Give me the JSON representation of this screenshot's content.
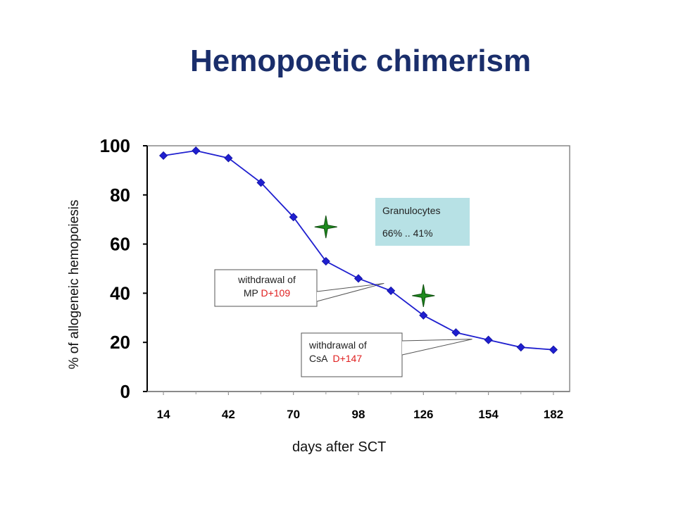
{
  "title": "Hemopoetic chimerism",
  "chart_data": {
    "type": "line",
    "x": [
      14,
      28,
      42,
      56,
      70,
      84,
      98,
      112,
      126,
      140,
      154,
      168,
      182
    ],
    "values": [
      96,
      98,
      95,
      85,
      71,
      53,
      46,
      41,
      31,
      24,
      21,
      18,
      17
    ],
    "xticks": [
      "14",
      "42",
      "70",
      "98",
      "126",
      "154",
      "182"
    ],
    "yticks": [
      "0",
      "20",
      "40",
      "60",
      "80",
      "100"
    ],
    "ylim": [
      0,
      100
    ],
    "xlim": [
      7,
      189
    ],
    "xlabel": "days after SCT",
    "ylabel": "% of allogeneic hemopoiesis",
    "series_color": "#1f1fcf",
    "marker": "diamond",
    "grid": false,
    "legend": {
      "line1": "Granulocytes",
      "line2": "66% .. 41%",
      "color": "#b7e1e5",
      "placement": "top-right"
    },
    "annotations": [
      {
        "line1": "withdrawal of",
        "line2_prefix": "MP ",
        "line2_highlight": "D+109",
        "points_to_day": 109
      },
      {
        "line1": "withdrawal of",
        "line2_prefix": "CsA  ",
        "line2_highlight": "D+147",
        "points_to_day": 147
      }
    ],
    "star_markers": [
      {
        "x": 84,
        "y": 67,
        "color": "#1e8a1e"
      },
      {
        "x": 126,
        "y": 39,
        "color": "#1e8a1e"
      }
    ]
  }
}
